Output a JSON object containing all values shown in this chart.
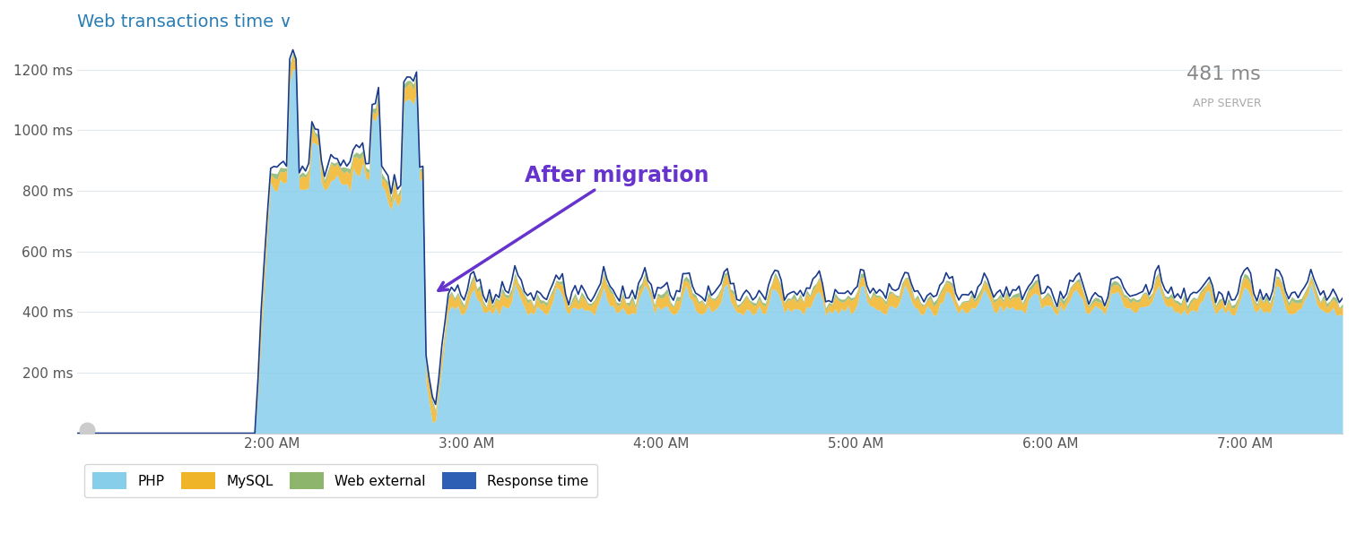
{
  "title": "Web transactions time ∨",
  "title_color": "#2a7db5",
  "bg_color": "#ffffff",
  "plot_bg_color": "#ffffff",
  "grid_color": "#e0e8ef",
  "annotation_text": "After migration",
  "annotation_color": "#6633cc",
  "ylabel_ticks": [
    "200 ms",
    "400 ms",
    "600 ms",
    "800 ms",
    "1000 ms",
    "1200 ms"
  ],
  "ytick_values": [
    200,
    400,
    600,
    800,
    1000,
    1200
  ],
  "ylim": [
    0,
    1300
  ],
  "xtick_labels": [
    "2:00 AM",
    "3:00 AM",
    "4:00 AM",
    "5:00 AM",
    "6:00 AM",
    "7:00 AM"
  ],
  "stat_value": "481 ms",
  "stat_label": "APP SERVER",
  "php_color": "#87ceeb",
  "mysql_color": "#f0b429",
  "web_ext_color": "#8db56c",
  "response_color": "#1a3a8a",
  "legend_items": [
    "PHP",
    "MySQL",
    "Web external",
    "Response time"
  ],
  "legend_colors": [
    "#87ceeb",
    "#f0b429",
    "#8db56c",
    "#2d5fb5"
  ]
}
